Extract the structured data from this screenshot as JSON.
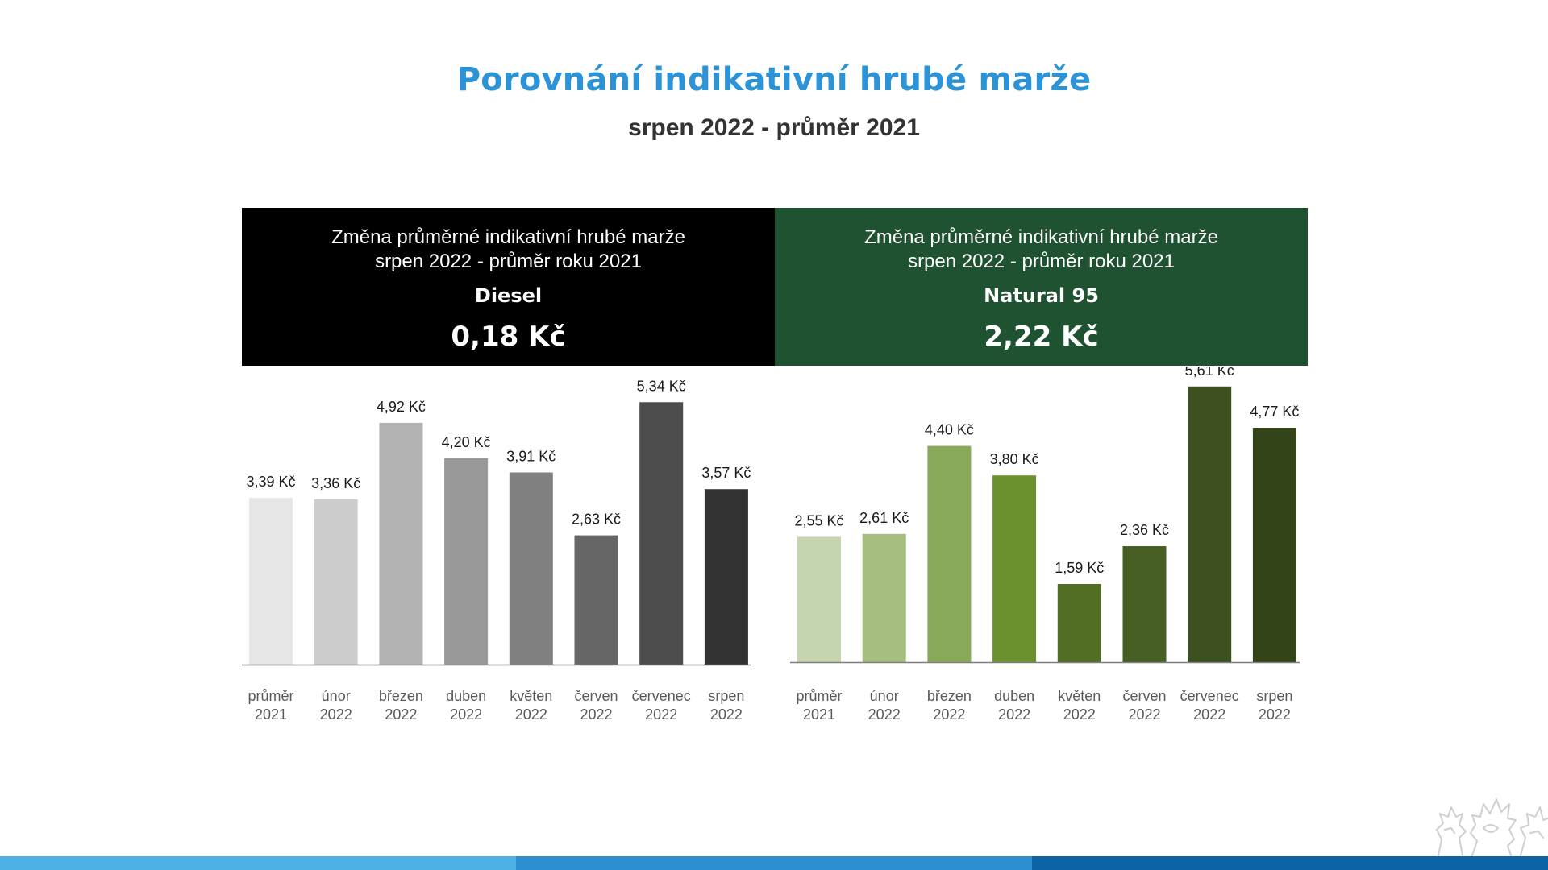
{
  "title": "Porovnání indikativní hrubé marže",
  "subtitle": "srpen 2022 - průměr 2021",
  "panels": {
    "diesel": {
      "heading_line1": "Změna průměrné indikativní hrubé marže",
      "heading_line2": "srpen 2022 - průměr roku 2021",
      "fuel": "Diesel",
      "value": "0,18 Kč"
    },
    "natural": {
      "heading_line1": "Změna průměrné indikativní hrubé marže",
      "heading_line2": "srpen 2022 - průměr roku 2021",
      "fuel": "Natural 95",
      "value": "2,22 Kč"
    }
  },
  "colors": {
    "title": "#2b93d6",
    "diesel_panel": "#000000",
    "natural_panel": "#1f5231",
    "footer": [
      "#4fb0e6",
      "#2b8fd1",
      "#0c64a6"
    ]
  },
  "chart_data": [
    {
      "type": "bar",
      "categories": [
        [
          "průměr",
          "2021"
        ],
        [
          "únor",
          "2022"
        ],
        [
          "březen",
          "2022"
        ],
        [
          "duben",
          "2022"
        ],
        [
          "květen",
          "2022"
        ],
        [
          "červen",
          "2022"
        ],
        [
          "červenec",
          "2022"
        ],
        [
          "srpen",
          "2022"
        ]
      ],
      "values": [
        3.39,
        3.36,
        4.92,
        4.2,
        3.91,
        2.63,
        5.34,
        3.57
      ],
      "value_labels": [
        "3,39 Kč",
        "3,36 Kč",
        "4,92 Kč",
        "4,20 Kč",
        "3,91 Kč",
        "2,63 Kč",
        "5,34 Kč",
        "3,57 Kč"
      ],
      "colors": [
        "#e6e6e6",
        "#cccccc",
        "#b3b3b3",
        "#999999",
        "#808080",
        "#666666",
        "#4d4d4d",
        "#333333"
      ],
      "ylim": [
        0,
        6
      ]
    },
    {
      "type": "bar",
      "categories": [
        [
          "průměr",
          "2021"
        ],
        [
          "únor",
          "2022"
        ],
        [
          "březen",
          "2022"
        ],
        [
          "duben",
          "2022"
        ],
        [
          "květen",
          "2022"
        ],
        [
          "červen",
          "2022"
        ],
        [
          "červenec",
          "2022"
        ],
        [
          "srpen",
          "2022"
        ]
      ],
      "values": [
        2.55,
        2.61,
        4.4,
        3.8,
        1.59,
        2.36,
        5.61,
        4.77
      ],
      "value_labels": [
        "2,55 Kč",
        "2,61 Kč",
        "4,40 Kč",
        "3,80 Kč",
        "1,59 Kč",
        "2,36 Kč",
        "5,61 Kč",
        "4,77 Kč"
      ],
      "colors": [
        "#c5d5ad",
        "#a6bf80",
        "#8aa85a",
        "#6b902f",
        "#526e25",
        "#465e24",
        "#3d5120",
        "#334418"
      ],
      "ylim": [
        0,
        6
      ]
    }
  ]
}
